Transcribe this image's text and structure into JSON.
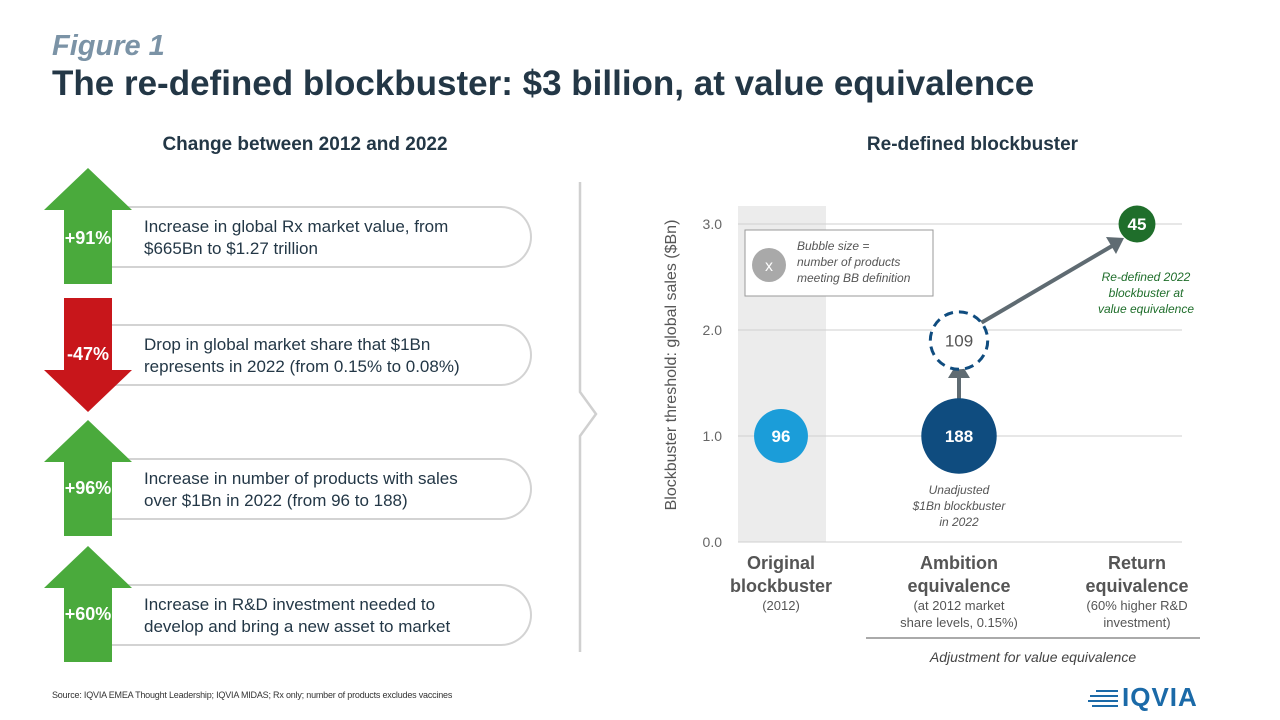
{
  "figure_label": "Figure 1",
  "title": "The re-defined blockbuster: $3 billion, at value equivalence",
  "left_panel": {
    "title": "Change between 2012 and 2022",
    "items": [
      {
        "value": "+91%",
        "direction": "up",
        "color": "#4aaa3c",
        "text_line1": "Increase in global Rx market value, from",
        "text_line2": "$665Bn to $1.27 trillion"
      },
      {
        "value": "-47%",
        "direction": "down",
        "color": "#c8161b",
        "text_line1": "Drop in global market share that $1Bn",
        "text_line2": "represents in 2022 (from 0.15% to 0.08%)"
      },
      {
        "value": "+96%",
        "direction": "up",
        "color": "#4aaa3c",
        "text_line1": "Increase in number of products with sales",
        "text_line2": "over $1Bn in 2022 (from 96 to 188)"
      },
      {
        "value": "+60%",
        "direction": "up",
        "color": "#4aaa3c",
        "text_line1": "Increase in R&D investment needed to",
        "text_line2": "develop and bring a new asset to market"
      }
    ]
  },
  "chart_data": {
    "type": "scatter",
    "title": "Re-defined blockbuster",
    "ylabel": "Blockbuster threshold: global sales ($Bn)",
    "ylim": [
      0,
      3
    ],
    "yticks": [
      "0.0",
      "1.0",
      "2.0",
      "3.0"
    ],
    "grid": true,
    "categories": [
      {
        "name": "Original blockbuster",
        "name_line1": "Original",
        "name_line2": "blockbuster",
        "sub_line1": "(2012)",
        "sub_line2": ""
      },
      {
        "name": "Ambition equivalence",
        "name_line1": "Ambition",
        "name_line2": "equivalence",
        "sub_line1": "(at 2012 market",
        "sub_line2": "share levels, 0.15%)"
      },
      {
        "name": "Return equivalence",
        "name_line1": "Return",
        "name_line2": "equivalence",
        "sub_line1": "(60% higher R&D",
        "sub_line2": "investment)"
      }
    ],
    "bubbles": [
      {
        "category": 0,
        "y": 1.0,
        "label": "96",
        "count": 96,
        "color": "#1b9dd9",
        "style": "solid"
      },
      {
        "category": 1,
        "y": 1.0,
        "label": "188",
        "count": 188,
        "color": "#0f4c7f",
        "style": "solid"
      },
      {
        "category": 1,
        "y": 1.9,
        "label": "109",
        "count": 109,
        "color": "#0f4c7f",
        "style": "dashed"
      },
      {
        "category": 2,
        "y": 3.0,
        "label": "45",
        "count": 45,
        "color": "#1f6e2b",
        "style": "solid"
      }
    ],
    "legend": {
      "marker": "x",
      "line1": "Bubble size =",
      "line2": "number of products",
      "line3": "meeting BB definition",
      "position": "top-left"
    },
    "annotations": {
      "unadjusted": {
        "line1": "Unadjusted",
        "line2": "$1Bn blockbuster",
        "line3": "in 2022"
      },
      "redefined": {
        "line1": "Re-defined 2022",
        "line2": "blockbuster at",
        "line3": "value equivalence",
        "color": "#1f6e2b"
      }
    },
    "bracket_label": "Adjustment  for value equivalence"
  },
  "source": "Source: IQVIA EMEA Thought Leadership; IQVIA MIDAS; Rx only; number of products excludes vaccines",
  "logo": {
    "name": "IQVIA",
    "icon": "iqvia-lines-icon",
    "color": "#1b6aa8"
  }
}
